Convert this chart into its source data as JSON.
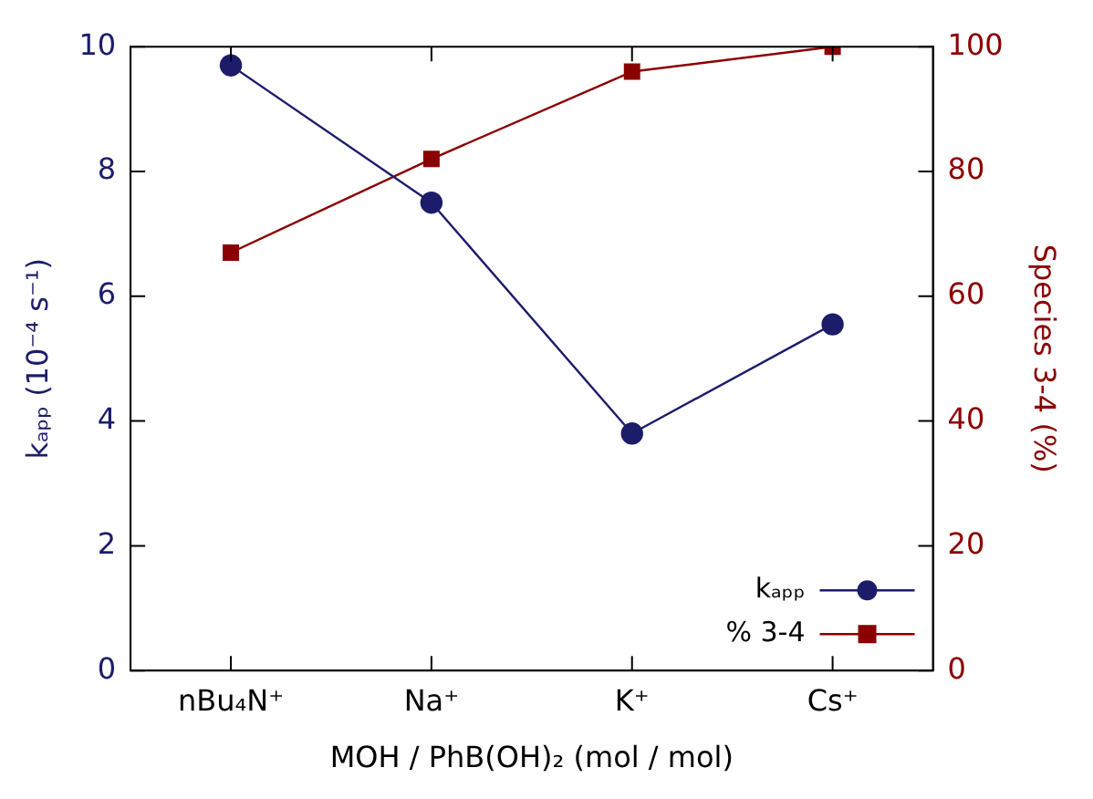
{
  "chart_data": {
    "type": "line",
    "xlabel": "MOH / PhB(OH)₂ (mol / mol)",
    "ylabel": "kₐₚₚ (10⁻⁴ s⁻¹)",
    "y2label": "Species 3-4 (%)",
    "categories": [
      "nBu₄N⁺",
      "Na⁺",
      "K⁺",
      "Cs⁺"
    ],
    "series": [
      {
        "name": "kₐₚₚ",
        "color": "#1c1c6b",
        "values": [
          9.7,
          7.5,
          3.8,
          5.55
        ],
        "marker": "circle"
      },
      {
        "name": "% 3-4",
        "color": "#8b0000",
        "values": [
          67,
          82,
          96,
          100
        ],
        "axis": "y2",
        "marker": "square"
      }
    ],
    "ylim": [
      0,
      10
    ],
    "yticks": [
      0,
      2,
      4,
      6,
      8,
      10
    ],
    "y2lim": [
      0,
      100
    ],
    "y2ticks": [
      0,
      20,
      40,
      60,
      80,
      100
    ],
    "grid": false,
    "legend": "bottom right"
  }
}
